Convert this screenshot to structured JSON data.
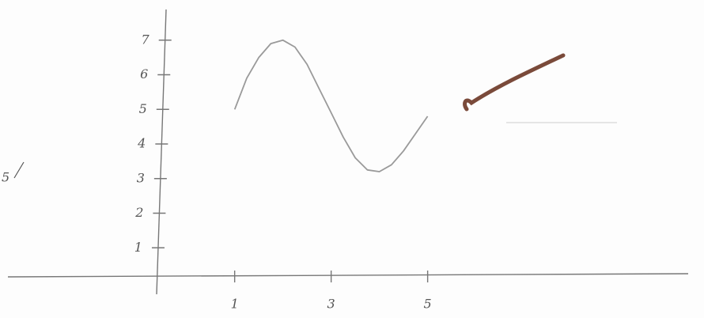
{
  "chart_data": {
    "type": "line",
    "annotations": [
      "5"
    ],
    "x": [
      1,
      1.25,
      1.5,
      1.75,
      2,
      2.25,
      2.5,
      2.75,
      3,
      3.25,
      3.5,
      3.75,
      4,
      4.25,
      4.5,
      4.75,
      5
    ],
    "series": [
      {
        "color": "#9a9a9a",
        "values": [
          5,
          5.9,
          6.5,
          6.9,
          7,
          6.8,
          6.3,
          5.6,
          4.9,
          4.2,
          3.6,
          3.25,
          3.2,
          3.4,
          3.8,
          4.3,
          4.8
        ]
      }
    ],
    "xlim": [
      -3.7,
      10.4
    ],
    "xticks": [
      1,
      3,
      5
    ],
    "ylim": [
      0,
      8
    ],
    "yticks": [
      1,
      2,
      3,
      4,
      5,
      6,
      7
    ]
  }
}
